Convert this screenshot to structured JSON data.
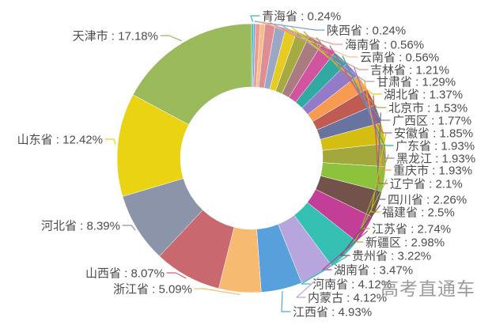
{
  "chart_data": {
    "type": "pie",
    "subtype": "donut",
    "value_unit": "%",
    "label_separator": " : ",
    "legend": "none",
    "total": 100,
    "series": [
      {
        "name": "青海省",
        "value": 0.24,
        "display": "0.24%",
        "label_text": "青海省 : 0.24%",
        "color": "#3bb5b0"
      },
      {
        "name": "陕西省",
        "value": 0.24,
        "display": "0.24%",
        "label_text": "陕西省 : 0.24%",
        "color": "#6f9de3"
      },
      {
        "name": "海南省",
        "value": 0.56,
        "display": "0.56%",
        "label_text": "海南省 : 0.56%",
        "color": "#ef9a8d"
      },
      {
        "name": "云南省",
        "value": 0.56,
        "display": "0.56%",
        "label_text": "云南省 : 0.56%",
        "color": "#f6bd8a"
      },
      {
        "name": "吉林省",
        "value": 1.21,
        "display": "1.21%",
        "label_text": "吉林省 : 1.21%",
        "color": "#de8d93"
      },
      {
        "name": "甘肃省",
        "value": 1.29,
        "display": "1.29%",
        "label_text": "甘肃省 : 1.29%",
        "color": "#9ba8c5"
      },
      {
        "name": "湖北省",
        "value": 1.37,
        "display": "1.37%",
        "label_text": "湖北省 : 1.37%",
        "color": "#e5cb22"
      },
      {
        "name": "北京市",
        "value": 1.53,
        "display": "1.53%",
        "label_text": "北京市 : 1.53%",
        "color": "#a7aa41"
      },
      {
        "name": "广西区",
        "value": 1.77,
        "display": "1.77%",
        "label_text": "广西区 : 1.77%",
        "color": "#aa7c81"
      },
      {
        "name": "安徽省",
        "value": 1.85,
        "display": "1.85%",
        "label_text": "安徽省 : 1.85%",
        "color": "#d1559e"
      },
      {
        "name": "广东省",
        "value": 1.93,
        "display": "1.93%",
        "label_text": "广东省 : 1.93%",
        "color": "#2fa9a2"
      },
      {
        "name": "黑龙江",
        "value": 1.93,
        "display": "1.93%",
        "label_text": "黑龙江 : 1.93%",
        "color": "#937bc9"
      },
      {
        "name": "重庆市",
        "value": 1.93,
        "display": "1.93%",
        "label_text": "重庆市 : 1.93%",
        "color": "#f89b52"
      },
      {
        "name": "辽宁省",
        "value": 2.1,
        "display": "2.1%",
        "label_text": "辽宁省 : 2.1%",
        "color": "#c05b54"
      },
      {
        "name": "四川省",
        "value": 2.26,
        "display": "2.26%",
        "label_text": "四川省 : 2.26%",
        "color": "#68739f"
      },
      {
        "name": "福建省",
        "value": 2.5,
        "display": "2.5%",
        "label_text": "福建省 : 2.5%",
        "color": "#d4be11"
      },
      {
        "name": "江苏省",
        "value": 2.74,
        "display": "2.74%",
        "label_text": "江苏省 : 2.74%",
        "color": "#a3a83d"
      },
      {
        "name": "新疆区",
        "value": 2.98,
        "display": "2.98%",
        "label_text": "新疆区 : 2.98%",
        "color": "#8cc23c"
      },
      {
        "name": "贵州省",
        "value": 3.22,
        "display": "3.22%",
        "label_text": "贵州省 : 3.22%",
        "color": "#73524b"
      },
      {
        "name": "湖南省",
        "value": 3.47,
        "display": "3.47%",
        "label_text": "湖南省 : 3.47%",
        "color": "#c23e97"
      },
      {
        "name": "河南省",
        "value": 4.12,
        "display": "4.12%",
        "label_text": "河南省 : 4.12%",
        "color": "#36c0b3"
      },
      {
        "name": "内蒙古",
        "value": 4.12,
        "display": "4.12%",
        "label_text": "内蒙古 : 4.12%",
        "color": "#b7a6de"
      },
      {
        "name": "江西省",
        "value": 4.93,
        "display": "4.93%",
        "label_text": "江西省 : 4.93%",
        "color": "#57a0dc"
      },
      {
        "name": "浙江省",
        "value": 5.09,
        "display": "5.09%",
        "label_text": "浙江省 : 5.09%",
        "color": "#f7ba71"
      },
      {
        "name": "山西省",
        "value": 8.07,
        "display": "8.07%",
        "label_text": "山西省 : 8.07%",
        "color": "#c9696f"
      },
      {
        "name": "河北省",
        "value": 8.39,
        "display": "8.39%",
        "label_text": "河北省 : 8.39%",
        "color": "#8b94a8"
      },
      {
        "name": "山东省",
        "value": 12.42,
        "display": "12.42%",
        "label_text": "山东省 : 12.42%",
        "color": "#ead313"
      },
      {
        "name": "天津市",
        "value": 17.18,
        "display": "17.18%",
        "label_text": "天津市 : 17.18%",
        "color": "#9aba5c"
      }
    ]
  },
  "watermark": {
    "text": "高考直通车",
    "color": "#9b9b9b"
  },
  "colors": {
    "background": "#ffffff",
    "label_text": "#4d4d4d"
  }
}
